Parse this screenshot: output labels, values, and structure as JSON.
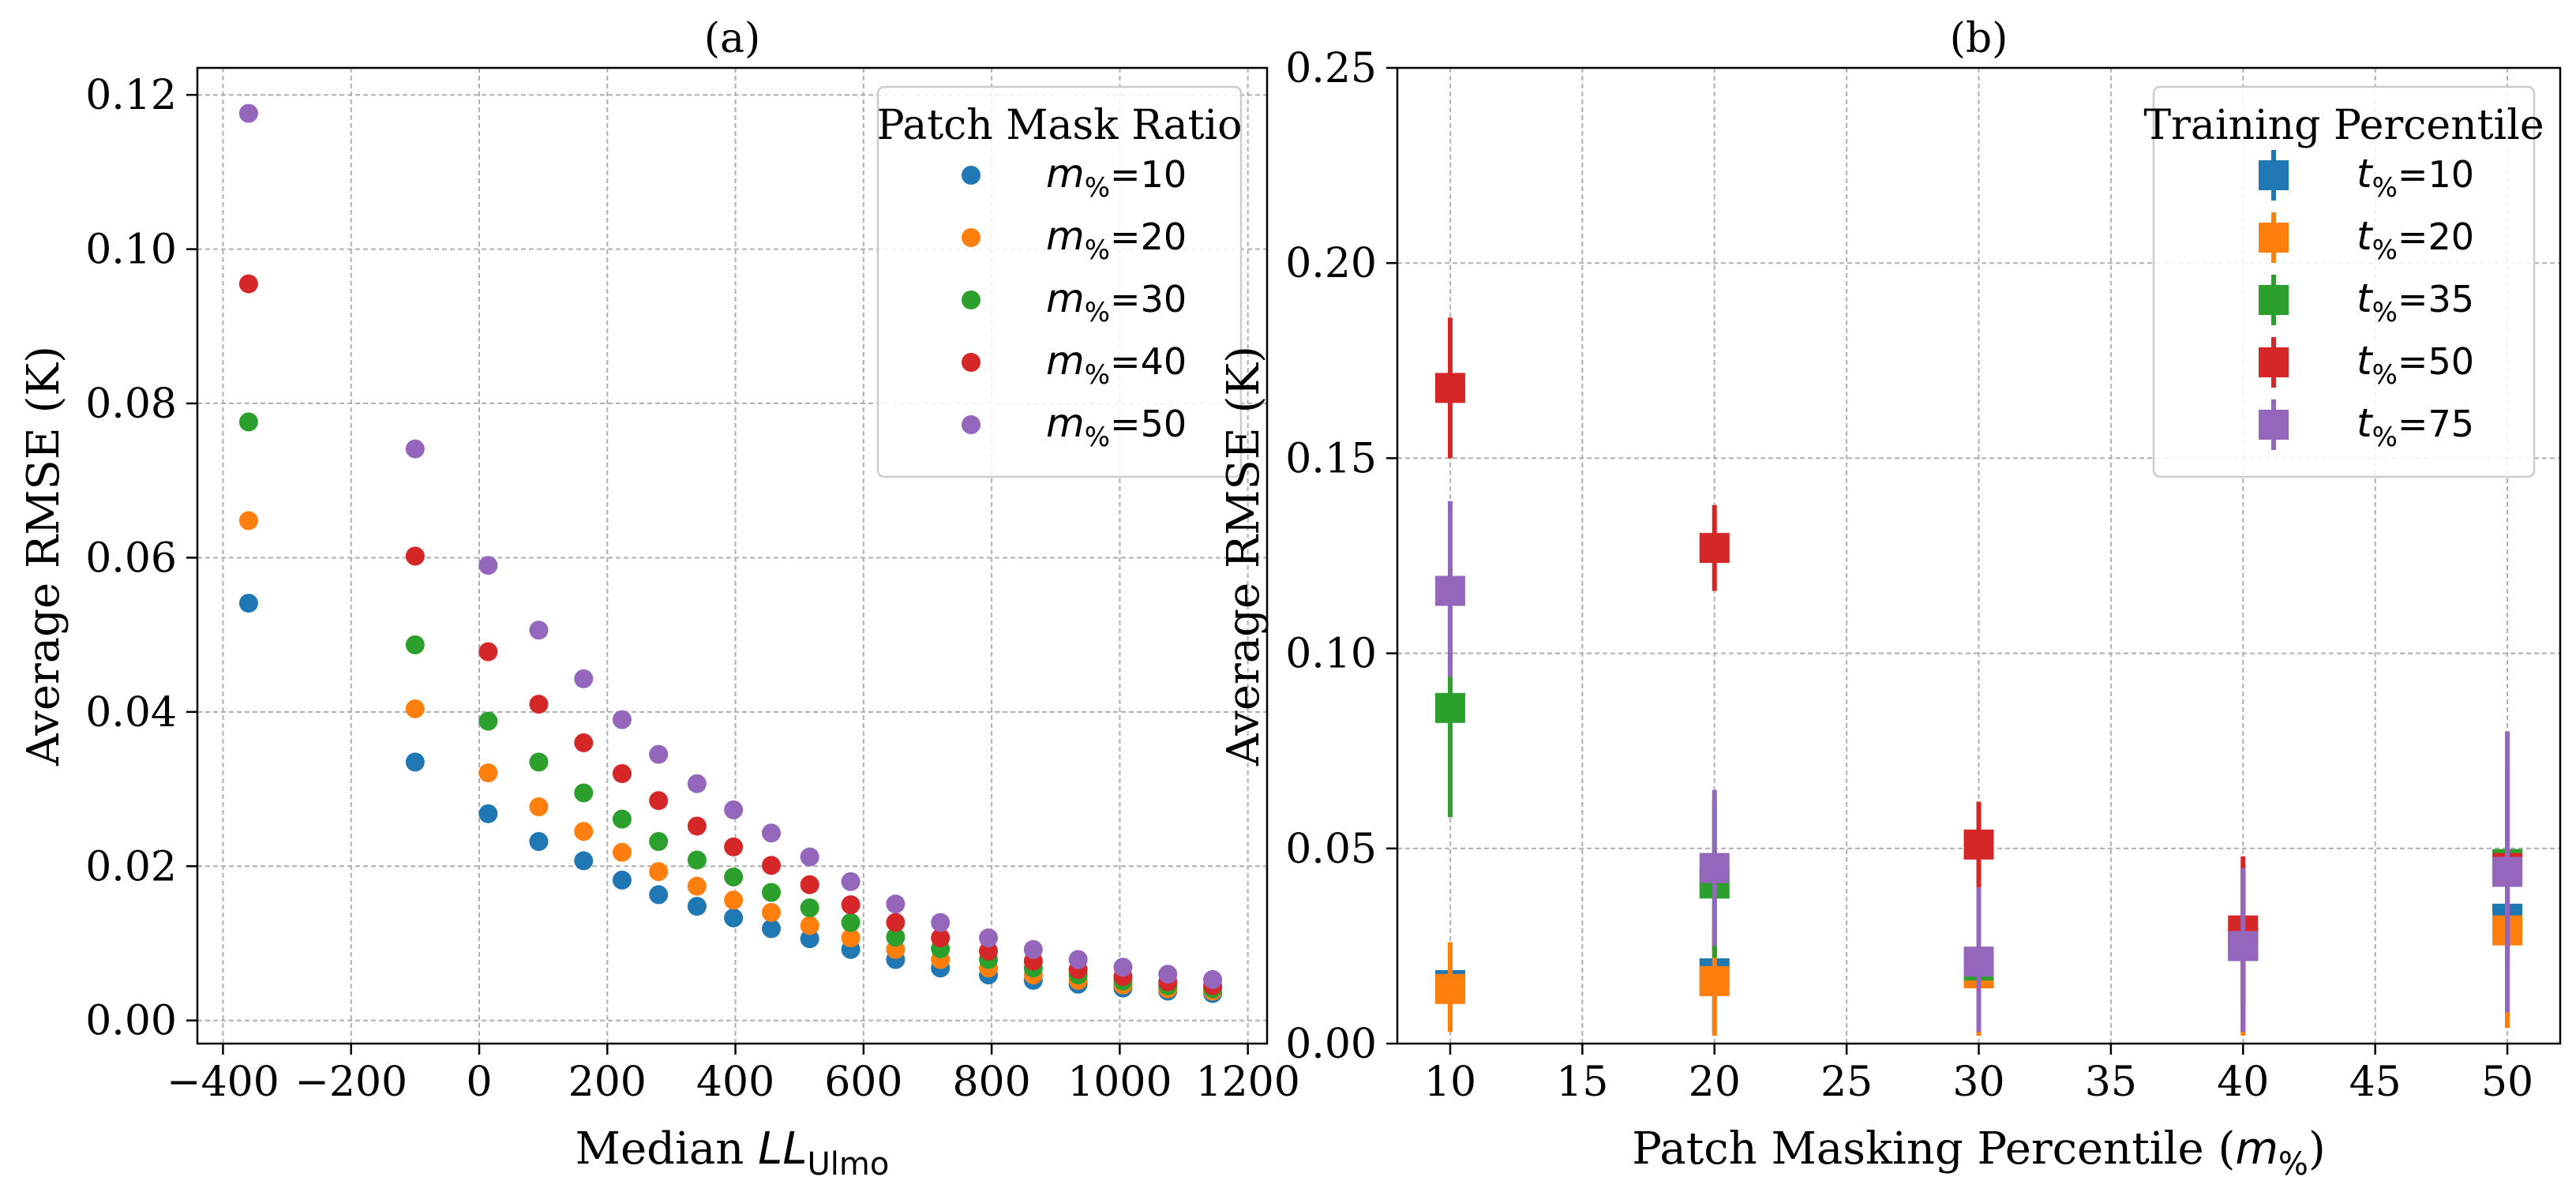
{
  "chart_data": [
    {
      "panel": "(a)",
      "type": "scatter",
      "title": "(a)",
      "xlabel": {
        "prefix": "Median ",
        "var": "LL",
        "sub": "Ulmo"
      },
      "ylabel": "Average RMSE (K)",
      "xlim": [
        -440,
        1230
      ],
      "ylim": [
        -0.003,
        0.1235
      ],
      "xticks": [
        -400,
        -200,
        0,
        200,
        400,
        600,
        800,
        1000,
        1200
      ],
      "xtick_labels": [
        "−400",
        "−200",
        "0",
        "200",
        "400",
        "600",
        "800",
        "1000",
        "1200"
      ],
      "yticks": [
        0.0,
        0.02,
        0.04,
        0.06,
        0.08,
        0.1,
        0.12
      ],
      "ytick_labels": [
        "0.00",
        "0.02",
        "0.04",
        "0.06",
        "0.08",
        "0.10",
        "0.12"
      ],
      "grid": true,
      "legend": {
        "title": "Patch Mask Ratio",
        "position": "top-right"
      },
      "x": [
        -360,
        -100,
        14,
        93,
        163,
        223,
        280,
        340,
        397,
        456,
        516,
        580,
        650,
        720,
        795,
        865,
        935,
        1005,
        1075,
        1145
      ],
      "series": [
        {
          "name": "m%=10",
          "sym": "m",
          "sub": "%",
          "num": "=10",
          "color": "#1f77b4",
          "values": [
            0.0541,
            0.0335,
            0.0268,
            0.0232,
            0.0207,
            0.0182,
            0.0163,
            0.0148,
            0.0133,
            0.0119,
            0.0106,
            0.0092,
            0.0079,
            0.0068,
            0.0059,
            0.0052,
            0.0047,
            0.0042,
            0.0038,
            0.0035
          ]
        },
        {
          "name": "m%=20",
          "sym": "m",
          "sub": "%",
          "num": "=20",
          "color": "#ff7f0e",
          "values": [
            0.0648,
            0.0404,
            0.0321,
            0.0277,
            0.0245,
            0.0218,
            0.0193,
            0.0174,
            0.0156,
            0.014,
            0.0123,
            0.0107,
            0.0092,
            0.0079,
            0.0068,
            0.0059,
            0.0052,
            0.0046,
            0.0041,
            0.0038
          ]
        },
        {
          "name": "m%=30",
          "sym": "m",
          "sub": "%",
          "num": "=30",
          "color": "#2ca02c",
          "values": [
            0.0776,
            0.0487,
            0.0388,
            0.0335,
            0.0295,
            0.0261,
            0.0232,
            0.0208,
            0.0186,
            0.0166,
            0.0146,
            0.0127,
            0.0108,
            0.0093,
            0.0079,
            0.0068,
            0.0059,
            0.0051,
            0.0045,
            0.0041
          ]
        },
        {
          "name": "m%=40",
          "sym": "m",
          "sub": "%",
          "num": "=40",
          "color": "#d62728",
          "values": [
            0.0955,
            0.0602,
            0.0478,
            0.041,
            0.036,
            0.032,
            0.0285,
            0.0252,
            0.0225,
            0.0201,
            0.0176,
            0.015,
            0.0127,
            0.0107,
            0.009,
            0.0077,
            0.0066,
            0.0057,
            0.005,
            0.0045
          ]
        },
        {
          "name": "m%=50",
          "sym": "m",
          "sub": "%",
          "num": "=50",
          "color": "#9467bd",
          "values": [
            0.1176,
            0.0741,
            0.059,
            0.0506,
            0.0443,
            0.039,
            0.0345,
            0.0307,
            0.0273,
            0.0243,
            0.0212,
            0.018,
            0.0151,
            0.0127,
            0.0107,
            0.0092,
            0.0079,
            0.0069,
            0.006,
            0.0053
          ]
        }
      ]
    },
    {
      "panel": "(b)",
      "type": "scatter",
      "title": "(b)",
      "xlabel": {
        "prefix": "Patch Masking Percentile (",
        "var": "m",
        "sub": "%",
        "suffix": ")"
      },
      "ylabel": "Average RMSE (K)",
      "xlim": [
        8,
        52
      ],
      "ylim": [
        0,
        0.25
      ],
      "xticks": [
        10,
        15,
        20,
        25,
        30,
        35,
        40,
        45,
        50
      ],
      "xtick_labels": [
        "10",
        "15",
        "20",
        "25",
        "30",
        "35",
        "40",
        "45",
        "50"
      ],
      "yticks": [
        0.0,
        0.05,
        0.1,
        0.15,
        0.2,
        0.25
      ],
      "ytick_labels": [
        "0.00",
        "0.05",
        "0.10",
        "0.15",
        "0.20",
        "0.25"
      ],
      "grid": true,
      "legend": {
        "title": "Training Percentile",
        "position": "top-right"
      },
      "x": [
        10,
        20,
        30,
        40,
        50
      ],
      "series": [
        {
          "name": "t%=10",
          "sym": "t",
          "sub": "%",
          "num": "=10",
          "color": "#1f77b4",
          "values": [
            0.015,
            0.018,
            0.019,
            0.025,
            0.032
          ],
          "err_low": [
            0.003,
            0.003,
            0.003,
            0.003,
            0.005
          ],
          "err_high": [
            0.025,
            0.025,
            0.035,
            0.045,
            0.045
          ]
        },
        {
          "name": "t%=20",
          "sym": "t",
          "sub": "%",
          "num": "=20",
          "color": "#ff7f0e",
          "values": [
            0.014,
            0.016,
            0.018,
            0.026,
            0.029
          ],
          "err_low": [
            0.003,
            0.002,
            0.002,
            0.002,
            0.004
          ],
          "err_high": [
            0.026,
            0.03,
            0.038,
            0.046,
            0.04
          ]
        },
        {
          "name": "t%=35",
          "sym": "t",
          "sub": "%",
          "num": "=35",
          "color": "#2ca02c",
          "values": [
            0.086,
            0.041,
            0.02,
            0.027,
            0.046
          ],
          "err_low": [
            0.058,
            0.022,
            0.008,
            0.01,
            0.02
          ],
          "err_high": [
            0.115,
            0.062,
            0.035,
            0.044,
            0.072
          ]
        },
        {
          "name": "t%=50",
          "sym": "t",
          "sub": "%",
          "num": "=50",
          "color": "#d62728",
          "values": [
            0.168,
            0.127,
            0.051,
            0.029,
            0.045
          ],
          "err_low": [
            0.15,
            0.116,
            0.04,
            0.01,
            0.02
          ],
          "err_high": [
            0.186,
            0.138,
            0.062,
            0.048,
            0.07
          ]
        },
        {
          "name": "t%=75",
          "sym": "t",
          "sub": "%",
          "num": "=75",
          "color": "#9467bd",
          "values": [
            0.116,
            0.045,
            0.021,
            0.025,
            0.044
          ],
          "err_low": [
            0.094,
            0.025,
            0.003,
            0.003,
            0.008
          ],
          "err_high": [
            0.139,
            0.065,
            0.04,
            0.045,
            0.08
          ]
        }
      ]
    }
  ]
}
